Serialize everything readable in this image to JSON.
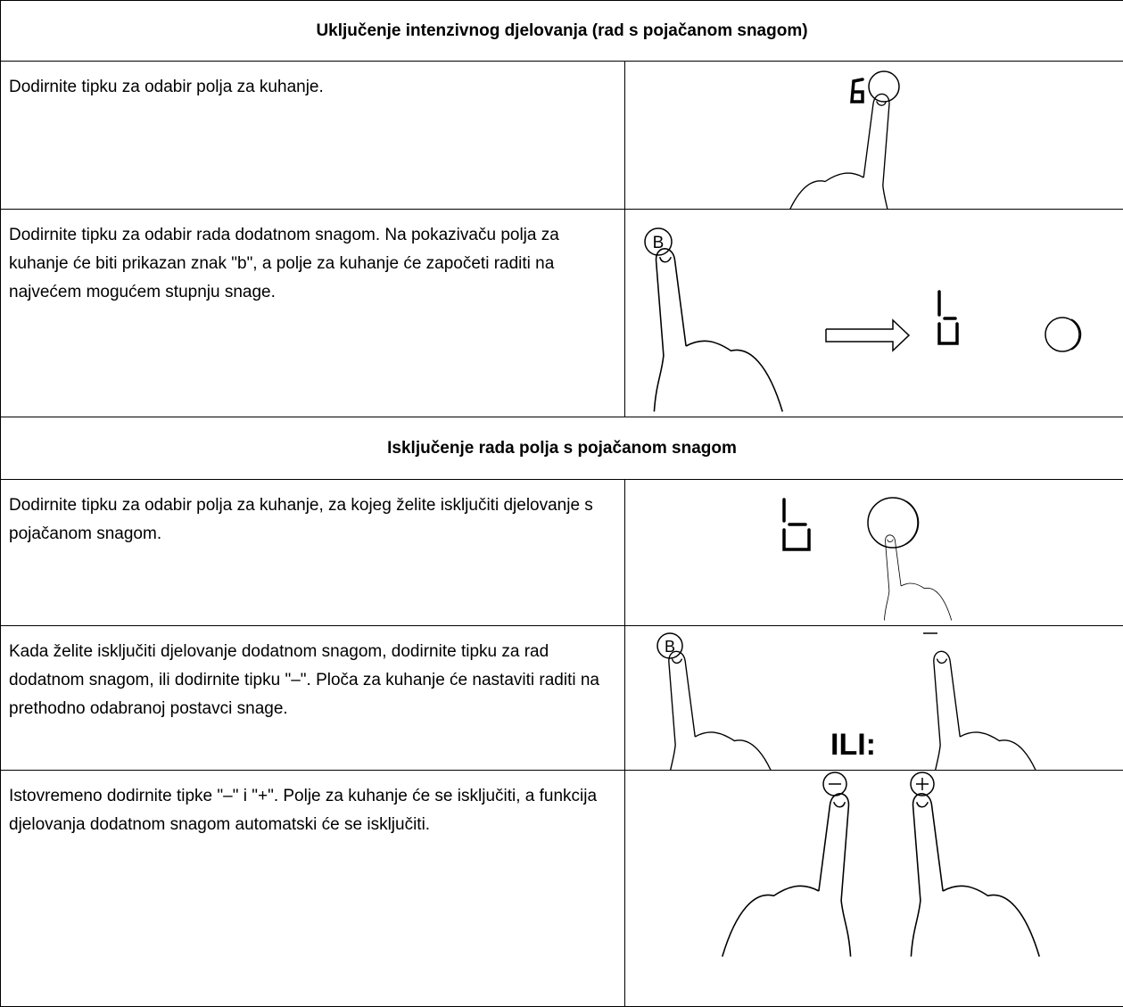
{
  "sections": [
    {
      "title": "Uključenje intenzivnog djelovanja (rad s pojačanom snagom)",
      "rows": [
        {
          "text": "Dodirnite tipku za odabir polja za kuhanje."
        },
        {
          "text": "Dodirnite tipku za odabir rada dodatnom snagom. Na pokazivaču polja za kuhanje će biti prikazan znak \"b\", a polje za kuhanje će započeti raditi na najvećem mogućem stupnju snage.",
          "labels": [
            "B"
          ]
        }
      ]
    },
    {
      "title": "Isključenje rada polja s pojačanom snagom",
      "rows": [
        {
          "text": "Dodirnite tipku za odabir polja za kuhanje, za kojeg želite isključiti djelovanje s pojačanom snagom."
        },
        {
          "text": "Kada želite isključiti djelovanje dodatnom snagom, dodirnite tipku za rad dodatnom snagom, ili dodirnite tipku \"–\". Ploča za kuhanje će nastaviti raditi na prethodno odabranoj postavci snage.",
          "labels": [
            "B",
            "ILI:"
          ]
        },
        {
          "text": "Istovremeno dodirnite tipke \"–\" i \"+\". Polje za kuhanje će se isključiti, a funkcija djelovanja dodatnom snagom automatski će se isključiti."
        }
      ]
    }
  ]
}
